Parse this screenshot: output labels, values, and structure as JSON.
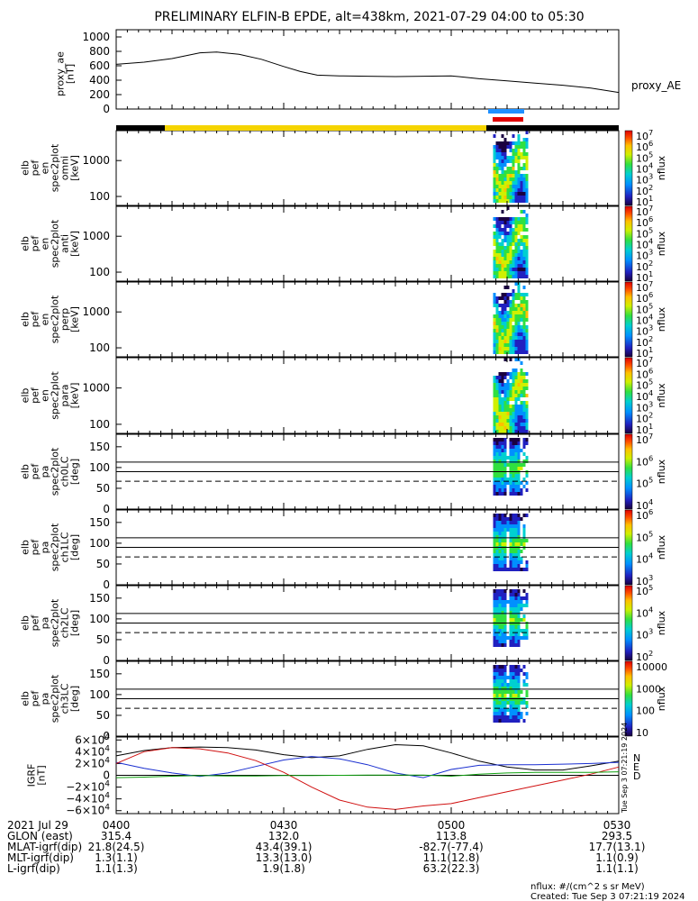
{
  "title": "PRELIMINARY ELFIN-B EPDE, alt=438km, 2021-07-29 04:00 to 05:30",
  "colors": {
    "fgm_black": "#000000",
    "fgm_blue": "#1a2fd0",
    "fgm_red": "#d01010",
    "fgm_green": "#10a010",
    "bar_science": "#f5d400",
    "bar_off": "#000000",
    "marker_blue": "#1e90ff",
    "marker_red": "#e00000"
  },
  "chart_data": [
    {
      "id": "proxy_ae",
      "type": "line",
      "ylabel": "proxy_ae\n[nT]",
      "legend": "proxy_AE",
      "yticks": [
        "1000",
        "800",
        "600",
        "400",
        "200",
        "0"
      ],
      "ylim": [
        0,
        1100
      ],
      "x": [
        0,
        5,
        10,
        15,
        18,
        22,
        26,
        30,
        33,
        36,
        40,
        45,
        50,
        55,
        60,
        65,
        70,
        75,
        80,
        85,
        90
      ],
      "y": [
        620,
        650,
        700,
        780,
        790,
        760,
        690,
        590,
        520,
        470,
        460,
        455,
        450,
        455,
        460,
        420,
        390,
        360,
        330,
        290,
        230
      ]
    },
    {
      "id": "en_omni",
      "type": "heatmap",
      "ylabel": "elb\npef\nen\nspec2plot\nomni\n[keV]",
      "yticks": [
        "1000",
        "100"
      ],
      "cbar_title": "nflux",
      "cbar_ticks": [
        "10^7",
        "10^6",
        "10^5",
        "10^4",
        "10^3",
        "10^2",
        "10^1"
      ]
    },
    {
      "id": "en_anti",
      "type": "heatmap",
      "ylabel": "elb\npef\nen\nspec2plot\nanti\n[keV]",
      "yticks": [
        "1000",
        "100"
      ],
      "cbar_title": "nflux",
      "cbar_ticks": [
        "10^7",
        "10^6",
        "10^5",
        "10^4",
        "10^3",
        "10^2",
        "10^1"
      ]
    },
    {
      "id": "en_perp",
      "type": "heatmap",
      "ylabel": "elb\npef\nen\nspec2plot\nperp\n[keV]",
      "yticks": [
        "1000",
        "100"
      ],
      "cbar_title": "nflux",
      "cbar_ticks": [
        "10^7",
        "10^6",
        "10^5",
        "10^4",
        "10^3",
        "10^2",
        "10^1"
      ]
    },
    {
      "id": "en_para",
      "type": "heatmap",
      "ylabel": "elb\npef\nen\nspec2plot\npara\n[keV]",
      "yticks": [
        "1000",
        "100"
      ],
      "cbar_title": "nflux",
      "cbar_ticks": [
        "10^7",
        "10^6",
        "10^5",
        "10^4",
        "10^3",
        "10^2",
        "10^1"
      ]
    },
    {
      "id": "pa_ch0",
      "type": "heatmap",
      "ylabel": "elb\npef\npa\nspec2plot\nch0LC\n[deg]",
      "yticks": [
        "150",
        "100",
        "50",
        "0"
      ],
      "hlines": [
        113,
        90,
        67
      ],
      "cbar_title": "nflux",
      "cbar_ticks": [
        "10^7",
        "10^6",
        "10^5",
        "10^4"
      ]
    },
    {
      "id": "pa_ch1",
      "type": "heatmap",
      "ylabel": "elb\npef\npa\nspec2plot\nch1LC\n[deg]",
      "yticks": [
        "150",
        "100",
        "50",
        "0"
      ],
      "hlines": [
        113,
        90,
        67
      ],
      "cbar_title": "nflux",
      "cbar_ticks": [
        "10^6",
        "10^5",
        "10^4",
        "10^3"
      ]
    },
    {
      "id": "pa_ch2",
      "type": "heatmap",
      "ylabel": "elb\npef\npa\nspec2plot\nch2LC\n[deg]",
      "yticks": [
        "150",
        "100",
        "50",
        "0"
      ],
      "hlines": [
        113,
        90,
        67
      ],
      "cbar_title": "nflux",
      "cbar_ticks": [
        "10^5",
        "10^4",
        "10^3",
        "10^2"
      ]
    },
    {
      "id": "pa_ch3",
      "type": "heatmap",
      "ylabel": "elb\npef\npa\nspec2plot\nch3LC\n[deg]",
      "yticks": [
        "150",
        "100",
        "50",
        "0"
      ],
      "hlines": [
        113,
        90,
        67
      ],
      "cbar_title": "nflux",
      "cbar_ticks": [
        "10000",
        "1000",
        "100",
        "10"
      ]
    },
    {
      "id": "igrf",
      "type": "line",
      "ylabel": "IGRF\n[nT]",
      "yticks": [
        "6×10^4",
        "4×10^4",
        "2×10^4",
        "0",
        "−2×10^4",
        "−4×10^4",
        "−6×10^4"
      ],
      "ylim": [
        -65000,
        65000
      ],
      "legend": [
        "N",
        "E",
        "D"
      ],
      "x": [
        0,
        5,
        10,
        15,
        20,
        25,
        30,
        35,
        40,
        45,
        50,
        55,
        60,
        65,
        70,
        75,
        80,
        85,
        90
      ],
      "series": [
        {
          "values": [
            33000,
            42000,
            47000,
            48000,
            47000,
            43000,
            35000,
            30000,
            33000,
            44000,
            52000,
            50000,
            38000,
            24000,
            14000,
            9000,
            9000,
            16000,
            24000
          ]
        },
        {
          "values": [
            22000,
            12000,
            4000,
            -2000,
            4000,
            15000,
            26000,
            32000,
            28000,
            18000,
            4000,
            -4000,
            10000,
            17000,
            18000,
            18000,
            19000,
            20000,
            22000
          ]
        },
        {
          "values": [
            20000,
            40000,
            47000,
            45000,
            38000,
            25000,
            5000,
            -20000,
            -42000,
            -54000,
            -58000,
            -52000,
            -48000,
            -38000,
            -28000,
            -18000,
            -8000,
            2000,
            14000
          ]
        },
        {
          "values": [
            -4000,
            -3000,
            -1500,
            -500,
            -1000,
            -1000,
            -500,
            -500,
            0,
            500,
            500,
            300,
            -1500,
            2000,
            4000,
            5000,
            5000,
            5000,
            6000
          ]
        }
      ]
    }
  ],
  "footer": {
    "rows": [
      {
        "label": "2021 Jul 29",
        "v1": "0400",
        "v2": "0430",
        "v3": "0500",
        "v4": "0530"
      },
      {
        "label": "GLON (east)",
        "v1": "315.4",
        "v2": "132.0",
        "v3": "113.8",
        "v4": "293.5"
      },
      {
        "label": "MLAT-igrf(dip)",
        "v1": "21.8(24.5)",
        "v2": "43.4(39.1)",
        "v3": "-82.7(-77.4)",
        "v4": "17.7(13.1)"
      },
      {
        "label": "MLT-igrf(dip)",
        "v1": "1.3(1.1)",
        "v2": "13.3(13.0)",
        "v3": "11.1(12.8)",
        "v4": "1.1(0.9)"
      },
      {
        "label": "L-igrf(dip)",
        "v1": "1.1(1.3)",
        "v2": "1.9(1.8)",
        "v3": "63.2(22.3)",
        "v4": "1.1(1.1)"
      }
    ],
    "units_note": "nflux: #/(cm^2 s sr MeV)",
    "created": "Created: Tue Sep  3 07:21:19 2024",
    "side_stamp": "Tue Sep  3 07:21:19 2024"
  }
}
